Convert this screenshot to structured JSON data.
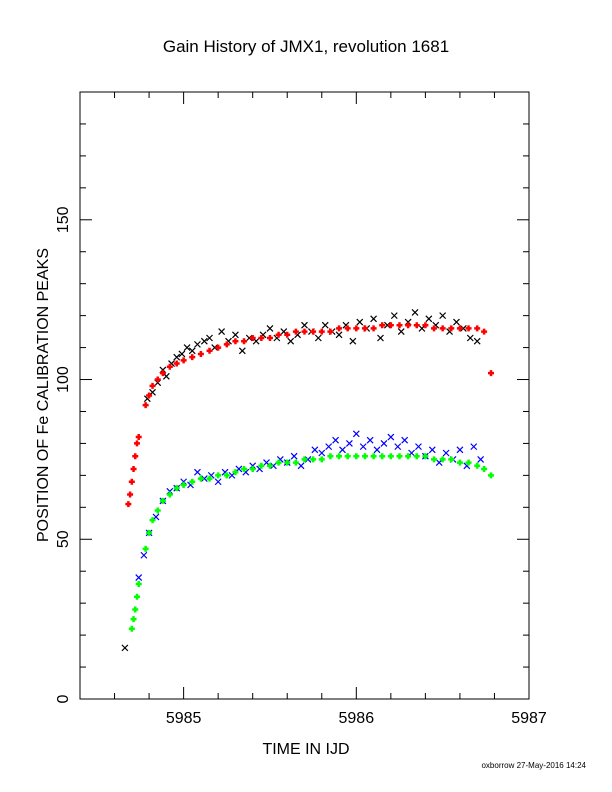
{
  "chart_data": {
    "type": "scatter",
    "title": "Gain History of JMX1, revolution 1681",
    "xlabel": "TIME IN IJD",
    "ylabel": "POSITION OF Fe CALIBRATION PEAKS",
    "xlim": [
      5984.4,
      5987.0
    ],
    "ylim": [
      0,
      190
    ],
    "x_ticks": [
      5985,
      5986,
      5987
    ],
    "y_ticks": [
      0,
      50,
      100,
      150
    ],
    "grid": false,
    "footer": "oxborrow 27-May-2016 14:24",
    "series": [
      {
        "color": "#000000",
        "marker": "x",
        "points": [
          [
            5984.66,
            16
          ],
          [
            5984.79,
            94
          ],
          [
            5984.82,
            96
          ],
          [
            5984.85,
            99
          ],
          [
            5984.88,
            103
          ],
          [
            5984.9,
            101
          ],
          [
            5984.93,
            105
          ],
          [
            5984.96,
            107
          ],
          [
            5984.99,
            108
          ],
          [
            5985.02,
            110
          ],
          [
            5985.05,
            109
          ],
          [
            5985.08,
            111
          ],
          [
            5985.12,
            112
          ],
          [
            5985.15,
            113
          ],
          [
            5985.18,
            110
          ],
          [
            5985.22,
            115
          ],
          [
            5985.26,
            112
          ],
          [
            5985.3,
            114
          ],
          [
            5985.34,
            109
          ],
          [
            5985.38,
            113
          ],
          [
            5985.42,
            112
          ],
          [
            5985.46,
            114
          ],
          [
            5985.5,
            116
          ],
          [
            5985.54,
            113
          ],
          [
            5985.58,
            115
          ],
          [
            5985.62,
            112
          ],
          [
            5985.66,
            114
          ],
          [
            5985.7,
            117
          ],
          [
            5985.74,
            115
          ],
          [
            5985.78,
            113
          ],
          [
            5985.82,
            117
          ],
          [
            5985.86,
            115
          ],
          [
            5985.9,
            114
          ],
          [
            5985.94,
            117
          ],
          [
            5985.98,
            112
          ],
          [
            5986.02,
            118
          ],
          [
            5986.06,
            116
          ],
          [
            5986.1,
            119
          ],
          [
            5986.14,
            113
          ],
          [
            5986.18,
            117
          ],
          [
            5986.22,
            120
          ],
          [
            5986.26,
            115
          ],
          [
            5986.3,
            118
          ],
          [
            5986.34,
            121
          ],
          [
            5986.38,
            116
          ],
          [
            5986.42,
            119
          ],
          [
            5986.46,
            117
          ],
          [
            5986.5,
            120
          ],
          [
            5986.54,
            115
          ],
          [
            5986.58,
            118
          ],
          [
            5986.62,
            116
          ],
          [
            5986.66,
            113
          ],
          [
            5986.7,
            112
          ]
        ]
      },
      {
        "color": "#0000ff",
        "marker": "x",
        "points": [
          [
            5984.74,
            38
          ],
          [
            5984.77,
            45
          ],
          [
            5984.8,
            52
          ],
          [
            5984.84,
            57
          ],
          [
            5984.88,
            62
          ],
          [
            5984.92,
            65
          ],
          [
            5984.96,
            66
          ],
          [
            5985.0,
            68
          ],
          [
            5985.04,
            67
          ],
          [
            5985.08,
            71
          ],
          [
            5985.12,
            69
          ],
          [
            5985.16,
            70
          ],
          [
            5985.2,
            68
          ],
          [
            5985.24,
            71
          ],
          [
            5985.28,
            70
          ],
          [
            5985.32,
            72
          ],
          [
            5985.36,
            71
          ],
          [
            5985.4,
            73
          ],
          [
            5985.44,
            72
          ],
          [
            5985.48,
            74
          ],
          [
            5985.52,
            73
          ],
          [
            5985.56,
            75
          ],
          [
            5985.6,
            74
          ],
          [
            5985.64,
            76
          ],
          [
            5985.68,
            73
          ],
          [
            5985.72,
            75
          ],
          [
            5985.76,
            78
          ],
          [
            5985.8,
            77
          ],
          [
            5985.84,
            79
          ],
          [
            5985.88,
            81
          ],
          [
            5985.92,
            78
          ],
          [
            5985.96,
            80
          ],
          [
            5986.0,
            83
          ],
          [
            5986.04,
            79
          ],
          [
            5986.08,
            81
          ],
          [
            5986.12,
            78
          ],
          [
            5986.16,
            80
          ],
          [
            5986.2,
            82
          ],
          [
            5986.24,
            79
          ],
          [
            5986.28,
            81
          ],
          [
            5986.32,
            77
          ],
          [
            5986.36,
            79
          ],
          [
            5986.4,
            76
          ],
          [
            5986.44,
            78
          ],
          [
            5986.48,
            74
          ],
          [
            5986.52,
            77
          ],
          [
            5986.56,
            75
          ],
          [
            5986.6,
            78
          ],
          [
            5986.64,
            73
          ],
          [
            5986.68,
            79
          ],
          [
            5986.72,
            75
          ]
        ]
      },
      {
        "color": "#ff0000",
        "marker": "+",
        "points": [
          [
            5984.68,
            61
          ],
          [
            5984.69,
            64
          ],
          [
            5984.7,
            68
          ],
          [
            5984.71,
            72
          ],
          [
            5984.72,
            76
          ],
          [
            5984.73,
            80
          ],
          [
            5984.74,
            82
          ],
          [
            5984.78,
            92
          ],
          [
            5984.8,
            95
          ],
          [
            5984.82,
            98
          ],
          [
            5984.85,
            100
          ],
          [
            5984.88,
            102
          ],
          [
            5984.92,
            104
          ],
          [
            5984.96,
            105
          ],
          [
            5985.0,
            106
          ],
          [
            5985.05,
            107
          ],
          [
            5985.1,
            108
          ],
          [
            5985.15,
            109
          ],
          [
            5985.2,
            110
          ],
          [
            5985.25,
            111
          ],
          [
            5985.3,
            112
          ],
          [
            5985.35,
            112
          ],
          [
            5985.4,
            113
          ],
          [
            5985.45,
            113
          ],
          [
            5985.5,
            113
          ],
          [
            5985.55,
            114
          ],
          [
            5985.6,
            114
          ],
          [
            5985.65,
            115
          ],
          [
            5985.7,
            115
          ],
          [
            5985.75,
            115
          ],
          [
            5985.8,
            115
          ],
          [
            5985.85,
            115
          ],
          [
            5985.9,
            116
          ],
          [
            5985.95,
            116
          ],
          [
            5986.0,
            116
          ],
          [
            5986.05,
            116
          ],
          [
            5986.1,
            116
          ],
          [
            5986.15,
            117
          ],
          [
            5986.2,
            117
          ],
          [
            5986.25,
            117
          ],
          [
            5986.3,
            117
          ],
          [
            5986.35,
            117
          ],
          [
            5986.4,
            117
          ],
          [
            5986.45,
            116
          ],
          [
            5986.5,
            116
          ],
          [
            5986.55,
            116
          ],
          [
            5986.6,
            116
          ],
          [
            5986.65,
            116
          ],
          [
            5986.7,
            116
          ],
          [
            5986.74,
            115
          ],
          [
            5986.78,
            102
          ]
        ]
      },
      {
        "color": "#00ff00",
        "marker": "+",
        "points": [
          [
            5984.7,
            22
          ],
          [
            5984.71,
            25
          ],
          [
            5984.72,
            28
          ],
          [
            5984.73,
            32
          ],
          [
            5984.74,
            36
          ],
          [
            5984.78,
            47
          ],
          [
            5984.8,
            52
          ],
          [
            5984.82,
            56
          ],
          [
            5984.85,
            59
          ],
          [
            5984.88,
            62
          ],
          [
            5984.92,
            64
          ],
          [
            5984.96,
            66
          ],
          [
            5985.0,
            67
          ],
          [
            5985.05,
            68
          ],
          [
            5985.1,
            69
          ],
          [
            5985.15,
            69
          ],
          [
            5985.2,
            70
          ],
          [
            5985.25,
            70
          ],
          [
            5985.3,
            71
          ],
          [
            5985.35,
            72
          ],
          [
            5985.4,
            72
          ],
          [
            5985.45,
            73
          ],
          [
            5985.5,
            73
          ],
          [
            5985.55,
            74
          ],
          [
            5985.6,
            74
          ],
          [
            5985.65,
            74
          ],
          [
            5985.7,
            75
          ],
          [
            5985.75,
            75
          ],
          [
            5985.8,
            75
          ],
          [
            5985.85,
            76
          ],
          [
            5985.9,
            76
          ],
          [
            5985.95,
            76
          ],
          [
            5986.0,
            76
          ],
          [
            5986.05,
            76
          ],
          [
            5986.1,
            76
          ],
          [
            5986.15,
            76
          ],
          [
            5986.2,
            76
          ],
          [
            5986.25,
            76
          ],
          [
            5986.3,
            76
          ],
          [
            5986.35,
            76
          ],
          [
            5986.4,
            76
          ],
          [
            5986.45,
            75
          ],
          [
            5986.5,
            75
          ],
          [
            5986.55,
            75
          ],
          [
            5986.6,
            74
          ],
          [
            5986.65,
            74
          ],
          [
            5986.7,
            73
          ],
          [
            5986.74,
            72
          ],
          [
            5986.78,
            70
          ]
        ]
      }
    ]
  }
}
